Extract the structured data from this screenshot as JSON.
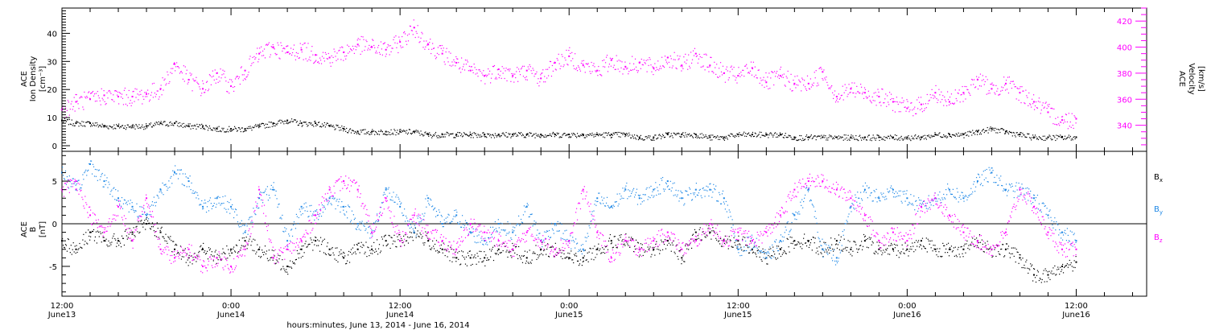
{
  "figure": {
    "xlabel": "hours:minutes, June 13, 2014 - June 16, 2014",
    "x_ticks": [
      {
        "t": 0,
        "time": "12:00",
        "date": "June13"
      },
      {
        "t": 12,
        "time": "0:00",
        "date": "June14"
      },
      {
        "t": 24,
        "time": "12:00",
        "date": "June14"
      },
      {
        "t": 36,
        "time": "0:00",
        "date": "June15"
      },
      {
        "t": 48,
        "time": "12:00",
        "date": "June15"
      },
      {
        "t": 60,
        "time": "0:00",
        "date": "June16"
      },
      {
        "t": 72,
        "time": "12:00",
        "date": "June16"
      }
    ]
  },
  "colors": {
    "density": "#000000",
    "velocity": "#ff00ff",
    "bx": "#000000",
    "by": "#1f88e6",
    "bz": "#ff00ff",
    "axis": "#000000"
  },
  "chart_data": [
    {
      "type": "scatter",
      "panel": "plasma",
      "ylabel_left": [
        "ACE",
        "Ion Density",
        "[cm⁻³]"
      ],
      "ylabel_right": [
        "ACE",
        "Velocity",
        "[km/s]"
      ],
      "ylim_left": [
        -2,
        49
      ],
      "ylim_right": [
        320,
        430
      ],
      "yticks_left": [
        0,
        10,
        20,
        30,
        40
      ],
      "yticks_right": [
        340,
        360,
        380,
        400,
        420
      ],
      "x_range_hours": [
        0,
        77
      ],
      "series": [
        {
          "key": "density",
          "x": [
            0,
            1,
            2,
            3,
            4,
            5,
            6,
            7,
            8,
            9,
            10,
            11,
            12,
            13,
            14,
            15,
            16,
            17,
            18,
            19,
            20,
            21,
            22,
            23,
            24,
            25,
            26,
            27,
            28,
            29,
            30,
            31,
            32,
            33,
            34,
            35,
            36,
            37,
            38,
            39,
            40,
            41,
            42,
            43,
            44,
            45,
            46,
            47,
            48,
            49,
            50,
            51,
            52,
            53,
            54,
            55,
            56,
            57,
            58,
            59,
            60,
            61,
            62,
            63,
            64,
            65,
            66,
            67,
            68,
            69,
            70,
            71,
            72
          ],
          "values": [
            9,
            8,
            8,
            7,
            7,
            7,
            7,
            8,
            8,
            7,
            7,
            6,
            6,
            6,
            7,
            8,
            9,
            8,
            8,
            7,
            6,
            5,
            5,
            5,
            5,
            5,
            4,
            4,
            4,
            4,
            4,
            4,
            4,
            4,
            4,
            4,
            4,
            4,
            4,
            4,
            4,
            3,
            3,
            4,
            4,
            4,
            3,
            3,
            4,
            4,
            4,
            4,
            3,
            3,
            3,
            3,
            3,
            3,
            3,
            3,
            3,
            3,
            4,
            4,
            4,
            5,
            6,
            5,
            4,
            3,
            3,
            3,
            3
          ]
        },
        {
          "key": "velocity",
          "x": [
            0,
            1,
            2,
            3,
            4,
            5,
            6,
            7,
            8,
            9,
            10,
            11,
            12,
            13,
            14,
            15,
            16,
            17,
            18,
            19,
            20,
            21,
            22,
            23,
            24,
            25,
            26,
            27,
            28,
            29,
            30,
            31,
            32,
            33,
            34,
            35,
            36,
            37,
            38,
            39,
            40,
            41,
            42,
            43,
            44,
            45,
            46,
            47,
            48,
            49,
            50,
            51,
            52,
            53,
            54,
            55,
            56,
            57,
            58,
            59,
            60,
            61,
            62,
            63,
            64,
            65,
            66,
            67,
            68,
            69,
            70,
            71,
            72
          ],
          "values": [
            352,
            358,
            360,
            363,
            362,
            362,
            364,
            368,
            387,
            375,
            368,
            380,
            370,
            382,
            395,
            400,
            396,
            398,
            394,
            392,
            396,
            402,
            400,
            398,
            404,
            415,
            402,
            395,
            388,
            382,
            378,
            383,
            378,
            382,
            376,
            388,
            393,
            386,
            382,
            390,
            385,
            388,
            384,
            392,
            386,
            395,
            386,
            380,
            378,
            384,
            373,
            378,
            372,
            372,
            381,
            362,
            368,
            365,
            362,
            358,
            353,
            356,
            365,
            358,
            365,
            375,
            368,
            372,
            365,
            358,
            350,
            344,
            345
          ]
        }
      ]
    },
    {
      "type": "scatter",
      "panel": "magnetic-field",
      "ylabel_left": [
        "ACE",
        "B",
        "[nT]"
      ],
      "ylim_left": [
        -8.5,
        8.5
      ],
      "yticks_left": [
        -5,
        0,
        5
      ],
      "x_range_hours": [
        0,
        77
      ],
      "legend": [
        "Bx",
        "By",
        "Bz"
      ],
      "series": [
        {
          "key": "bx",
          "x": [
            0,
            1,
            2,
            3,
            4,
            5,
            6,
            7,
            8,
            9,
            10,
            11,
            12,
            13,
            14,
            15,
            16,
            17,
            18,
            19,
            20,
            21,
            22,
            23,
            24,
            25,
            26,
            27,
            28,
            29,
            30,
            31,
            32,
            33,
            34,
            35,
            36,
            37,
            38,
            39,
            40,
            41,
            42,
            43,
            44,
            45,
            46,
            47,
            48,
            49,
            50,
            51,
            52,
            53,
            54,
            55,
            56,
            57,
            58,
            59,
            60,
            61,
            62,
            63,
            64,
            65,
            66,
            67,
            68,
            69,
            70,
            71,
            72
          ],
          "values": [
            -2,
            -3,
            -1,
            -2,
            -2,
            -1,
            0,
            -1,
            -3,
            -4,
            -3,
            -4,
            -3,
            -2,
            -3,
            -4,
            -5,
            -3,
            -2,
            -3,
            -4,
            -3,
            -3,
            -2,
            -2,
            -1,
            -2,
            -3,
            -4,
            -4,
            -4,
            -3,
            -3,
            -4,
            -3,
            -3,
            -4,
            -4,
            -3,
            -2,
            -2,
            -3,
            -3,
            -2,
            -4,
            -1,
            -1,
            -2,
            -2,
            -3,
            -4,
            -3,
            -2,
            -2,
            -3,
            -2,
            -3,
            -2,
            -3,
            -3,
            -3,
            -2,
            -3,
            -3,
            -3,
            -2,
            -3,
            -3,
            -4,
            -6,
            -6,
            -5,
            -4.5
          ]
        },
        {
          "key": "by",
          "x": [
            0,
            1,
            2,
            3,
            4,
            5,
            6,
            7,
            8,
            9,
            10,
            11,
            12,
            13,
            14,
            15,
            16,
            17,
            18,
            19,
            20,
            21,
            22,
            23,
            24,
            25,
            26,
            27,
            28,
            29,
            30,
            31,
            32,
            33,
            34,
            35,
            36,
            37,
            38,
            39,
            40,
            41,
            42,
            43,
            44,
            45,
            46,
            47,
            48,
            49,
            50,
            51,
            52,
            53,
            54,
            55,
            56,
            57,
            58,
            59,
            60,
            61,
            62,
            63,
            64,
            65,
            66,
            67,
            68,
            69,
            70,
            71,
            72
          ],
          "values": [
            6,
            4,
            7,
            5,
            3,
            2,
            1,
            4,
            6,
            5,
            2,
            3,
            2,
            -1,
            3,
            4,
            -2,
            2,
            1,
            3,
            2,
            0,
            -1,
            4,
            2,
            -1,
            3,
            0,
            1,
            -1,
            -2,
            0,
            -1,
            2,
            -2,
            0,
            -2,
            -3,
            3,
            2,
            4,
            3,
            4,
            5,
            3,
            4,
            4,
            3,
            -3,
            -2,
            -4,
            -2,
            1,
            4,
            -3,
            -4,
            2,
            4,
            3,
            4,
            3,
            2,
            3,
            4,
            3,
            5,
            6,
            4,
            4,
            3,
            1,
            -1,
            -2
          ]
        },
        {
          "key": "bz",
          "x": [
            0,
            1,
            2,
            3,
            4,
            5,
            6,
            7,
            8,
            9,
            10,
            11,
            12,
            13,
            14,
            15,
            16,
            17,
            18,
            19,
            20,
            21,
            22,
            23,
            24,
            25,
            26,
            27,
            28,
            29,
            30,
            31,
            32,
            33,
            34,
            35,
            36,
            37,
            38,
            39,
            40,
            41,
            42,
            43,
            44,
            45,
            46,
            47,
            48,
            49,
            50,
            51,
            52,
            53,
            54,
            55,
            56,
            57,
            58,
            59,
            60,
            61,
            62,
            63,
            64,
            65,
            66,
            67,
            68,
            69,
            70,
            71,
            72
          ],
          "values": [
            4,
            5,
            1,
            -1,
            2,
            -2,
            3,
            -3,
            -4,
            -3,
            -5,
            -4,
            -5,
            -3,
            4,
            -4,
            -3,
            -2,
            1,
            4,
            5,
            4,
            -1,
            3,
            -2,
            1,
            -1,
            -2,
            -3,
            0,
            -1,
            -2,
            -3,
            -1,
            -2,
            -3,
            -2,
            4,
            -1,
            -4,
            -2,
            -3,
            -2,
            -1,
            -3,
            -2,
            0,
            -2,
            -1,
            -2,
            -1,
            1,
            4,
            5,
            5,
            4,
            3,
            1,
            -2,
            -1,
            -2,
            2,
            3,
            1,
            -1,
            -2,
            -3,
            -1,
            4,
            2,
            -1,
            -3,
            -3
          ]
        }
      ]
    }
  ]
}
